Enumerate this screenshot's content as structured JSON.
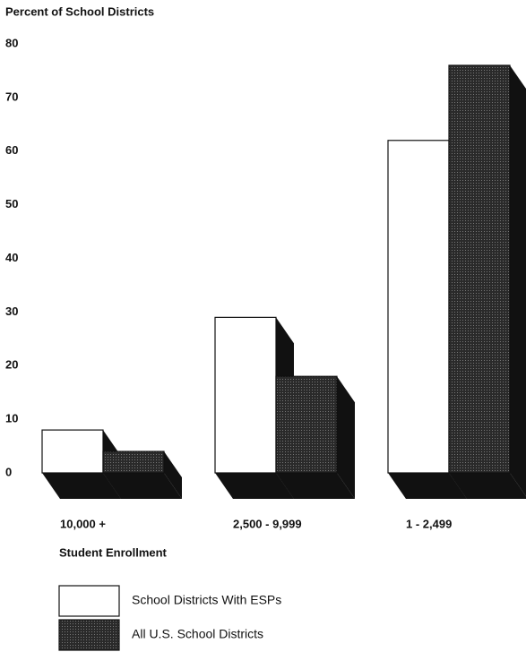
{
  "chart_data": {
    "type": "bar3d",
    "title": "Percent of School Districts",
    "x_label": "Student Enrollment",
    "categories": [
      "10,000 +",
      "2,500 - 9,999",
      "1 - 2,499"
    ],
    "series": [
      {
        "name": "School Districts With ESPs",
        "color": "#ffffff",
        "values": [
          8,
          29,
          62
        ]
      },
      {
        "name": "All U.S. School Districts",
        "color": "#2a2a2a",
        "values": [
          4,
          18,
          76
        ]
      }
    ],
    "ylim": [
      0,
      80
    ],
    "yticks": [
      0,
      10,
      20,
      30,
      40,
      50,
      60,
      70,
      80
    ]
  }
}
